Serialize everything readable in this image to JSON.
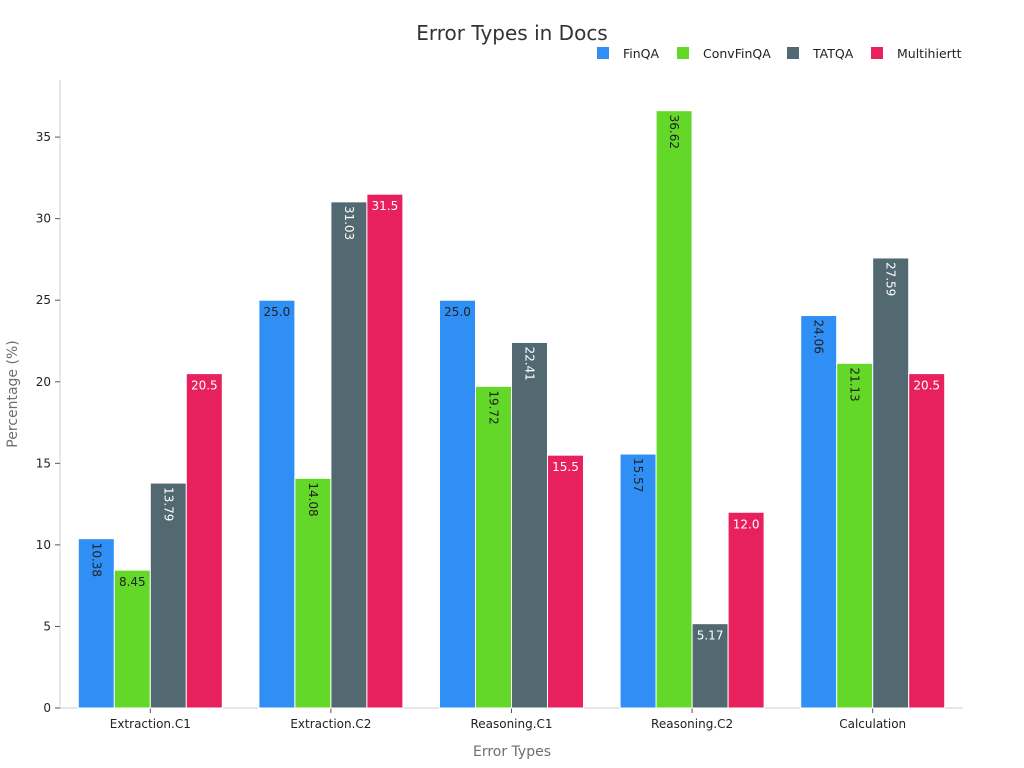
{
  "chart_data": {
    "type": "bar",
    "title": "Error Types in Docs",
    "xlabel": "Error Types",
    "ylabel": "Percentage (%)",
    "categories": [
      "Extraction.C1",
      "Extraction.C2",
      "Reasoning.C1",
      "Reasoning.C2",
      "Calculation"
    ],
    "series": [
      {
        "name": "FinQA",
        "color": "#2f8ff5",
        "values": [
          10.38,
          25.0,
          25.0,
          15.57,
          24.06
        ],
        "labels": [
          "10.38",
          "25.0",
          "25.0",
          "15.57",
          "24.06"
        ]
      },
      {
        "name": "ConvFinQA",
        "color": "#64d828",
        "values": [
          8.45,
          14.08,
          19.72,
          36.62,
          21.13
        ],
        "labels": [
          "8.45",
          "14.08",
          "19.72",
          "36.62",
          "21.13"
        ]
      },
      {
        "name": "TATQA",
        "color": "#536972",
        "values": [
          13.79,
          31.03,
          22.41,
          5.17,
          27.59
        ],
        "labels": [
          "13.79",
          "31.03",
          "22.41",
          "5.17",
          "27.59"
        ]
      },
      {
        "name": "Multihiertt",
        "color": "#e8205e",
        "values": [
          20.5,
          31.5,
          15.5,
          12.0,
          20.5
        ],
        "labels": [
          "20.5",
          "31.5",
          "15.5",
          "12.0",
          "20.5"
        ]
      }
    ],
    "ylim": [
      0,
      38.5
    ],
    "yticks": [
      0,
      5,
      10,
      15,
      20,
      25,
      30,
      35
    ],
    "grid": false,
    "legend_position": "top-right"
  }
}
